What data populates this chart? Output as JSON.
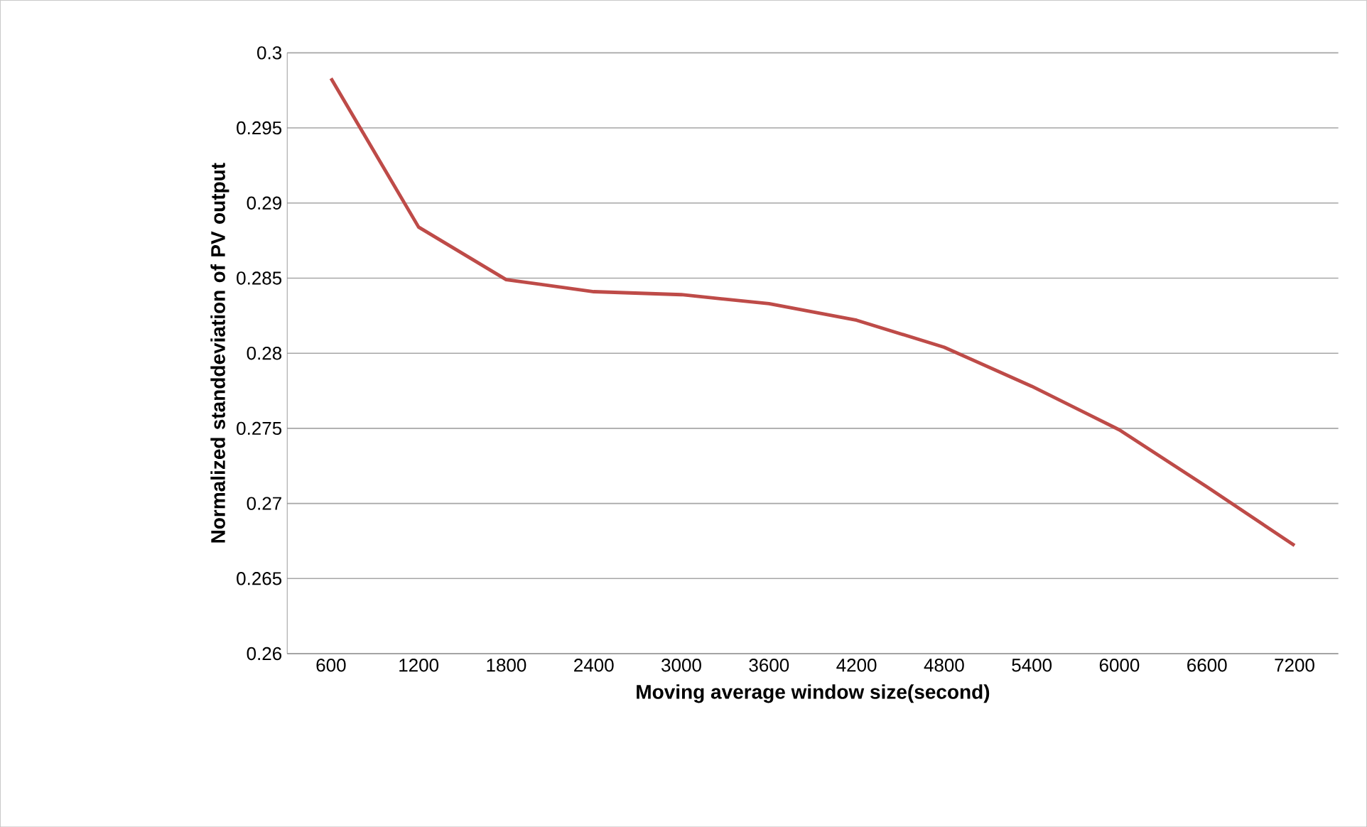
{
  "chart_data": {
    "type": "line",
    "xlabel": "Moving average window size(second)",
    "ylabel": "Normalized standdeviation of PV output",
    "categories": [
      "600",
      "1200",
      "1800",
      "2400",
      "3000",
      "3600",
      "4200",
      "4800",
      "5400",
      "6000",
      "6600",
      "7200"
    ],
    "series": [
      {
        "color": "#be4b48",
        "values": [
          0.2983,
          0.2884,
          0.2849,
          0.2841,
          0.2839,
          0.2833,
          0.2822,
          0.2804,
          0.2778,
          0.2749,
          0.2711,
          0.2672
        ]
      }
    ],
    "ylim": [
      0.26,
      0.3
    ],
    "yticks": [
      0.26,
      0.265,
      0.27,
      0.275,
      0.28,
      0.285,
      0.29,
      0.295,
      0.3
    ],
    "grid": "y",
    "marker": "none",
    "line_style": "solid"
  }
}
